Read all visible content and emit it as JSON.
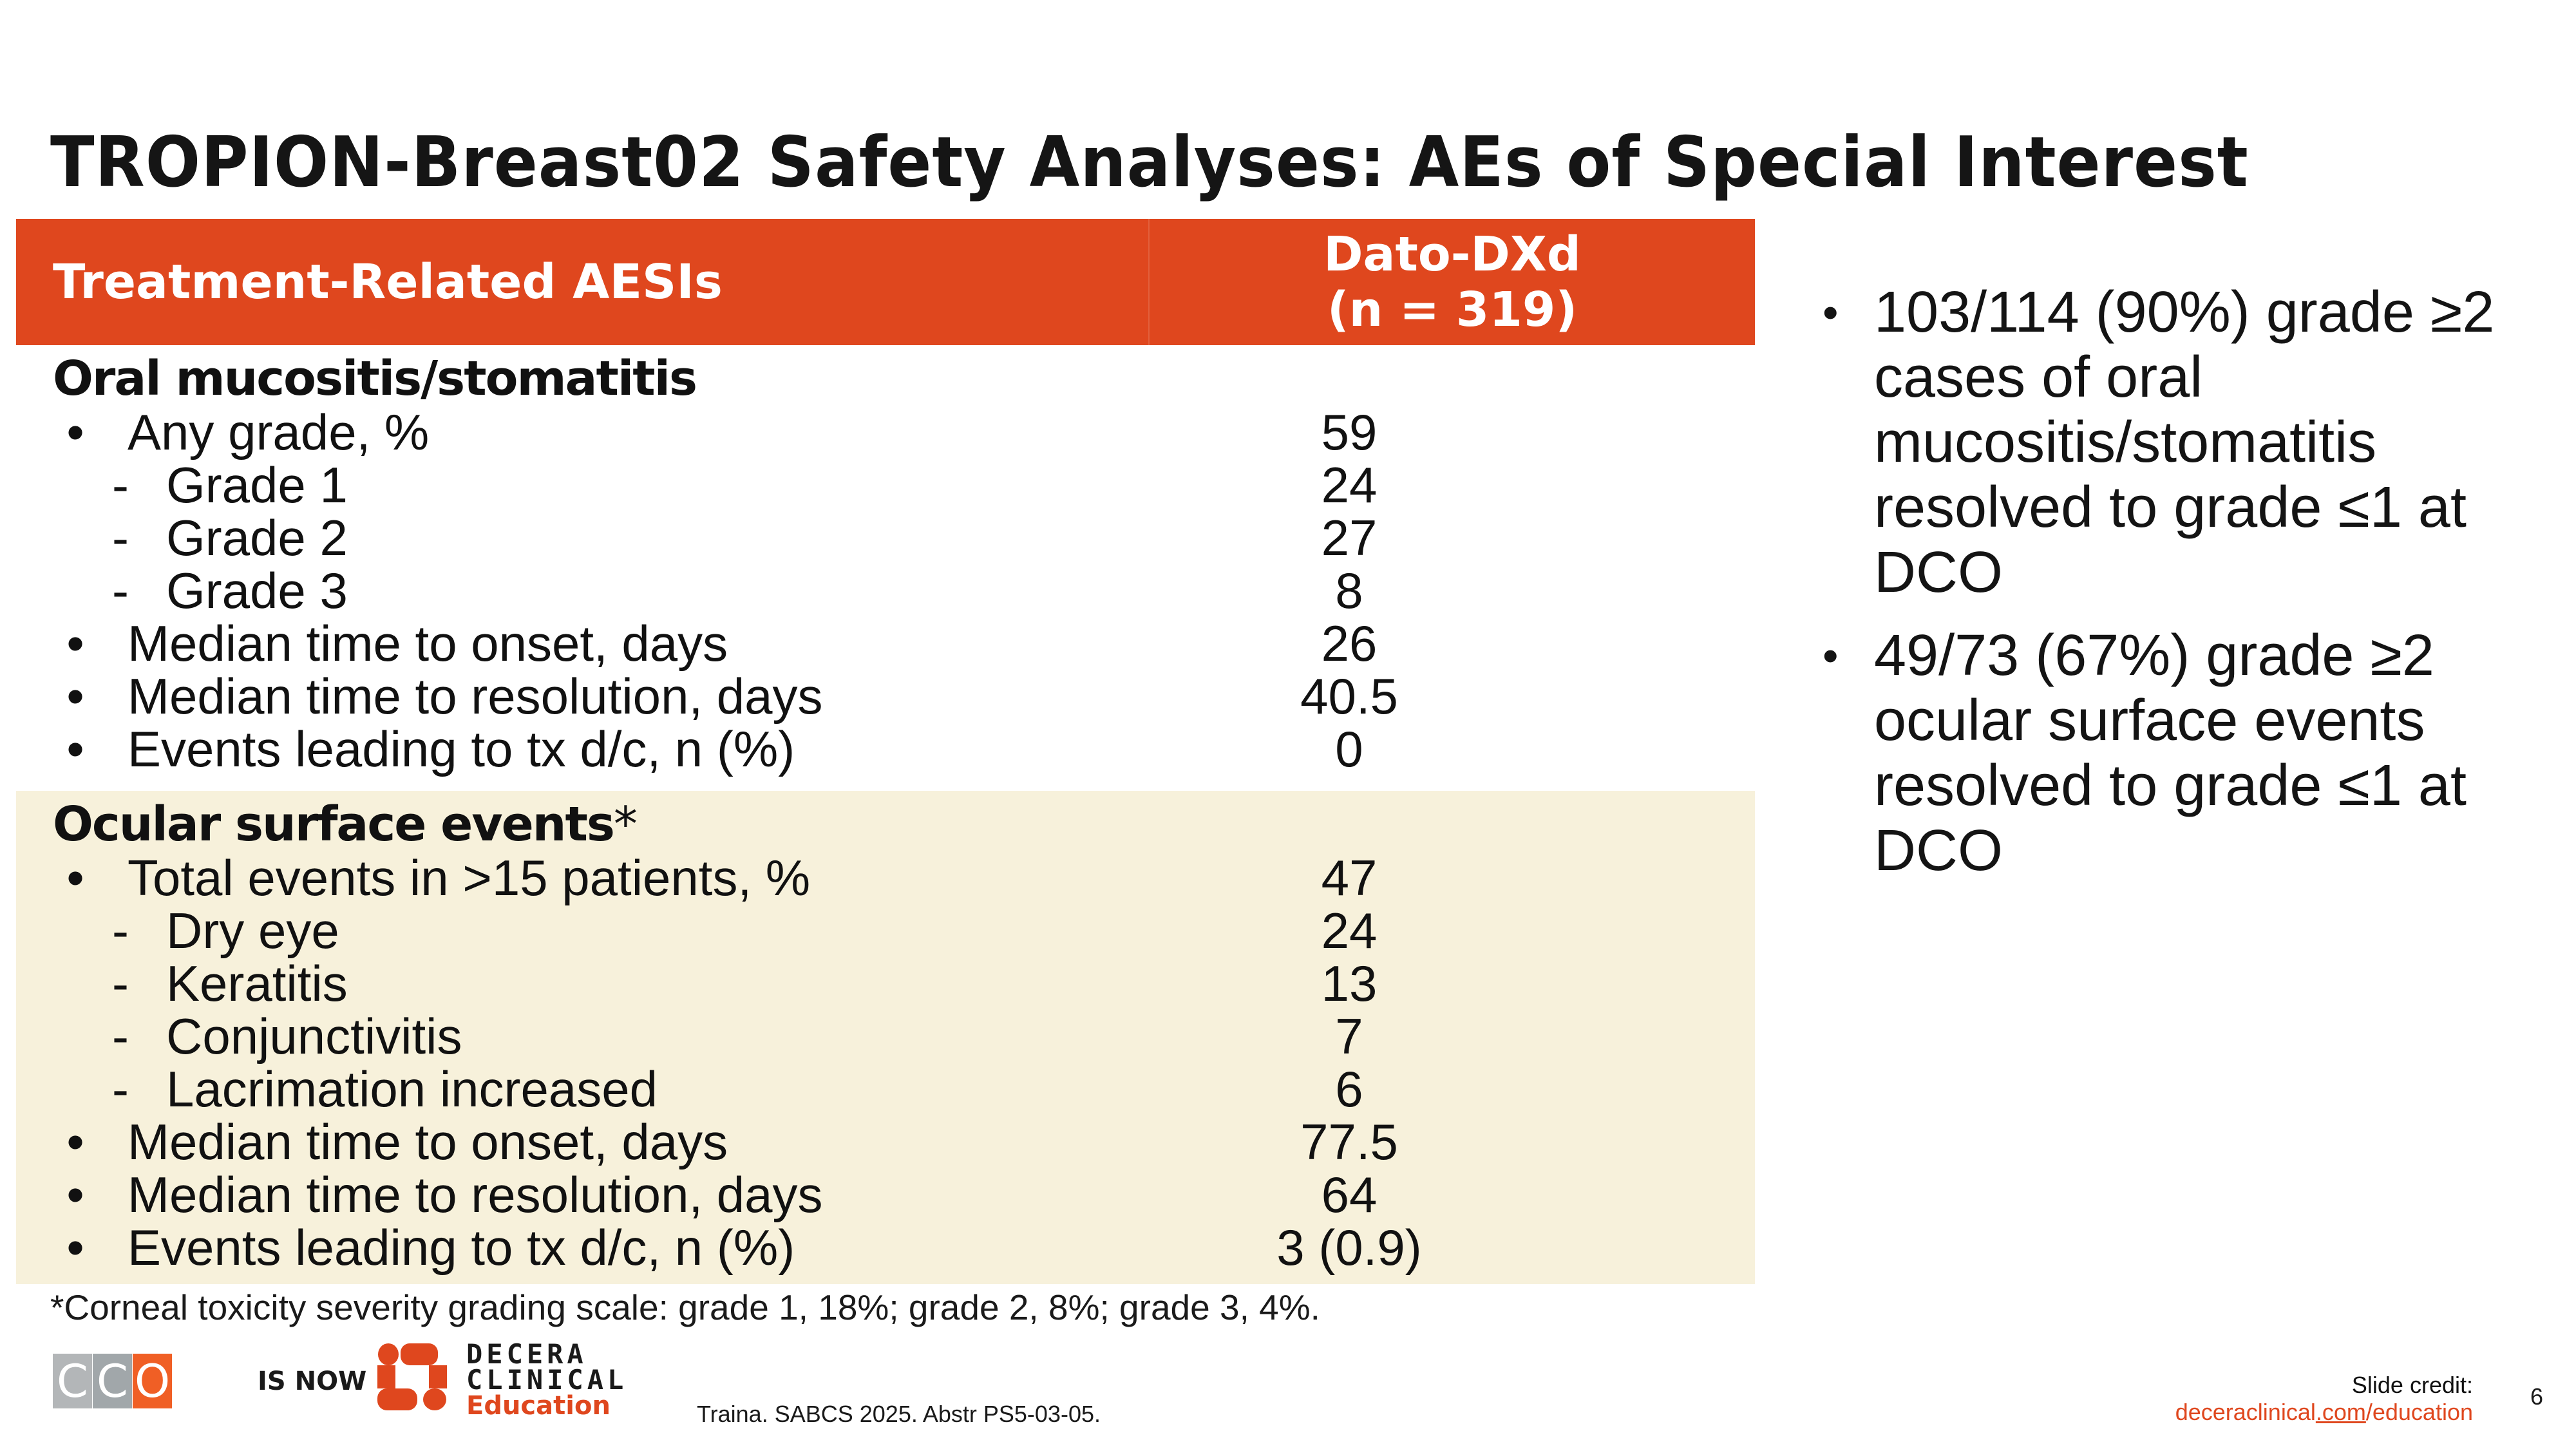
{
  "slide": {
    "title": "TROPION-Breast02 Safety Analyses: AEs of Special Interest",
    "table": {
      "header": {
        "col1": "Treatment-Related AESIs",
        "col2_line1": "Dato-DXd",
        "col2_line2": "(n = 319)"
      },
      "sections": [
        {
          "title": "Oral mucositis/stomatitis",
          "title_suffix": "",
          "rows": [
            {
              "marker": "•",
              "label": "Any grade, %",
              "value": "59"
            },
            {
              "marker": "-",
              "label": "Grade 1",
              "value": "24"
            },
            {
              "marker": "-",
              "label": "Grade 2",
              "value": "27"
            },
            {
              "marker": "-",
              "label": "Grade 3",
              "value": "8"
            },
            {
              "marker": "•",
              "label": "Median time to onset, days",
              "value": "26"
            },
            {
              "marker": "•",
              "label": "Median time to resolution, days",
              "value": "40.5"
            },
            {
              "marker": "•",
              "label": "Events leading to tx d/c, n (%)",
              "value": "0"
            }
          ]
        },
        {
          "title": "Ocular surface events",
          "title_suffix": "*",
          "rows": [
            {
              "marker": "•",
              "label": "Total events in >15 patients, %",
              "value": "47"
            },
            {
              "marker": "-",
              "label": "Dry eye",
              "value": "24"
            },
            {
              "marker": "-",
              "label": "Keratitis",
              "value": "13"
            },
            {
              "marker": "-",
              "label": "Conjunctivitis",
              "value": "7"
            },
            {
              "marker": "-",
              "label": "Lacrimation increased",
              "value": "6"
            },
            {
              "marker": "•",
              "label": "Median time to onset, days",
              "value": "77.5"
            },
            {
              "marker": "•",
              "label": "Median time to resolution, days",
              "value": "64"
            },
            {
              "marker": "•",
              "label": "Events leading to tx d/c, n (%)",
              "value": "3 (0.9)"
            }
          ]
        }
      ]
    },
    "footnote": "*Corneal toxicity severity grading scale: grade 1, 18%; grade 2, 8%; grade 3, 4%.",
    "right_bullets": [
      "103/114 (90%) grade ≥2 cases of oral mucositis/stomatitis resolved to grade ≤1 at DCO",
      "49/73 (67%) grade ≥2 ocular surface events resolved to grade ≤1 at DCO"
    ],
    "bullet_glyph": "•"
  },
  "footer": {
    "cco_letters": [
      "C",
      "C",
      "O"
    ],
    "is_now": "IS NOW",
    "decera_line1": "DECERA",
    "decera_line2": "CLINICAL",
    "decera_line3": "Education",
    "citation": "Traina. SABCS 2025. Abstr PS5-03-05.",
    "credit_label": "Slide credit:",
    "credit_link_pre": "deceraclinical",
    "credit_link_mid": ".com",
    "credit_link_post": "/education",
    "page_number": "6"
  },
  "colors": {
    "accent": "#df471e",
    "section_bg": "#f7f1db",
    "cco_gray1": "#b3b6b8",
    "cco_gray2": "#a1a7aa",
    "cco_orange": "#f05f25"
  }
}
